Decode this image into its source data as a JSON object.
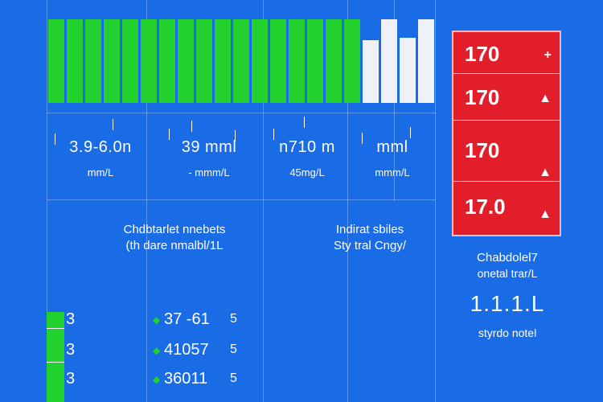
{
  "bar_strip": {
    "bars": [
      {
        "color": "green",
        "level": 1.0
      },
      {
        "color": "green",
        "level": 1.0
      },
      {
        "color": "green",
        "level": 1.0
      },
      {
        "color": "green",
        "level": 1.0
      },
      {
        "color": "green",
        "level": 1.0
      },
      {
        "color": "green",
        "level": 1.0
      },
      {
        "color": "green",
        "level": 1.0
      },
      {
        "color": "green",
        "level": 1.0
      },
      {
        "color": "green",
        "level": 1.0
      },
      {
        "color": "green",
        "level": 1.0
      },
      {
        "color": "green",
        "level": 1.0
      },
      {
        "color": "green",
        "level": 1.0
      },
      {
        "color": "green",
        "level": 1.0
      },
      {
        "color": "green",
        "level": 1.0
      },
      {
        "color": "green",
        "level": 1.0
      },
      {
        "color": "green",
        "level": 1.0
      },
      {
        "color": "green",
        "level": 1.0
      },
      {
        "color": "white",
        "level": 0.75
      },
      {
        "color": "white",
        "level": 1.0
      },
      {
        "color": "white",
        "level": 0.78
      },
      {
        "color": "white",
        "level": 1.0
      }
    ],
    "colors": {
      "green": "#22d12e",
      "white": "#eef1f6"
    }
  },
  "readings": [
    {
      "value": "3.9-6.0n",
      "unit": "mm/L"
    },
    {
      "value": "39 mml",
      "unit": "- mmm/L"
    },
    {
      "value": "n710 m",
      "unit": "45mg/L"
    },
    {
      "value": "mml",
      "unit": "mmm/L"
    }
  ],
  "section_left": {
    "title": "Chdbtarlet nnebets",
    "subtitle": "(th dare nmalbl/1L"
  },
  "section_right": {
    "title": "Indirat sbiles",
    "subtitle": "Sty tral Cngy/"
  },
  "alert_panel": {
    "color": "#e21e2b",
    "rows": [
      {
        "value": "170",
        "icon": "+"
      },
      {
        "value": "170",
        "icon": "▲"
      },
      {
        "value": "170",
        "icon": "▲"
      },
      {
        "value": "17.0",
        "icon": "▲"
      }
    ]
  },
  "summary": {
    "title": "Chabdolel7",
    "subtitle": "onetal trar/L",
    "value": "1.1.1.L",
    "footer": "styrdo notel"
  },
  "rows": [
    {
      "num": "3",
      "value": "37 -61",
      "tail": "5"
    },
    {
      "num": "3",
      "value": "41057",
      "tail": "5"
    },
    {
      "num": "3",
      "value": "36011",
      "tail": "5"
    }
  ],
  "level_bar": {
    "level": 1.0,
    "color": "#22d12e"
  }
}
